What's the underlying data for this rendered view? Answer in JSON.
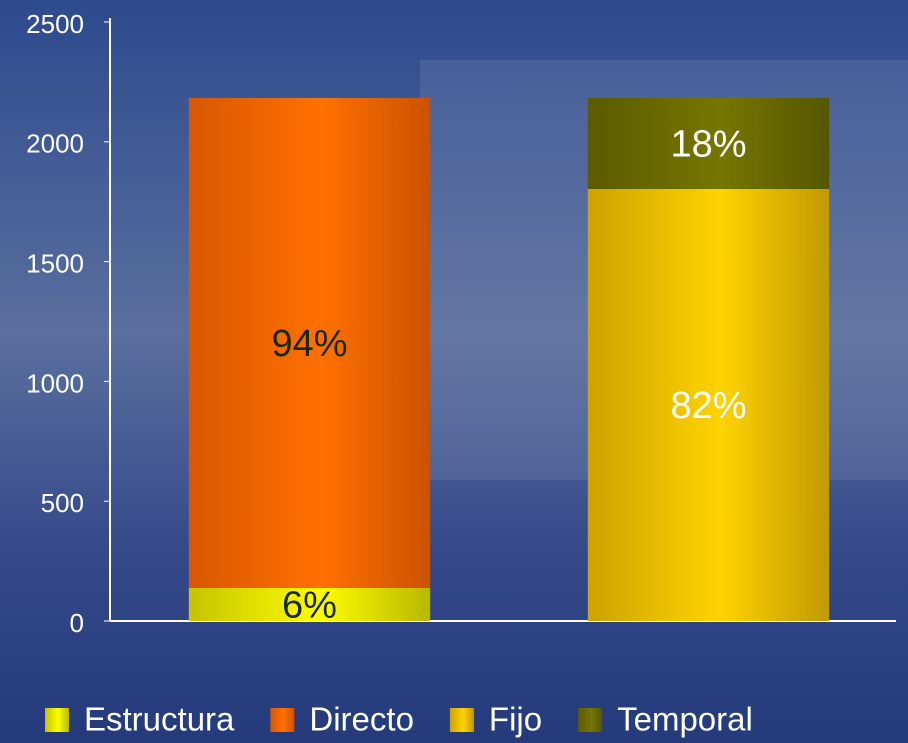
{
  "chart_data": {
    "type": "stacked_bar",
    "categories": [
      null,
      null
    ],
    "series": [
      {
        "name": "Estructura",
        "color": "#e6e600",
        "label_color": "#1a2a00",
        "values": [
          138,
          null
        ],
        "value_labels": [
          "6%",
          null
        ]
      },
      {
        "name": "Directo",
        "color": "#ff6600",
        "label_color": "#1a2a00",
        "values": [
          2045,
          null
        ],
        "value_labels": [
          "94%",
          null
        ]
      },
      {
        "name": "Fijo",
        "color": "#f0c000",
        "label_color": "#ffffff",
        "values": [
          null,
          1803
        ],
        "value_labels": [
          null,
          "82%"
        ]
      },
      {
        "name": "Temporal",
        "color": "#6b6b00",
        "label_color": "#ffffff",
        "values": [
          null,
          380
        ],
        "value_labels": [
          null,
          "18%"
        ]
      }
    ],
    "ylim": [
      0,
      2500
    ],
    "yticks": [
      0,
      500,
      1000,
      1500,
      2000,
      2500
    ],
    "grid": false,
    "legend": "bottom"
  }
}
